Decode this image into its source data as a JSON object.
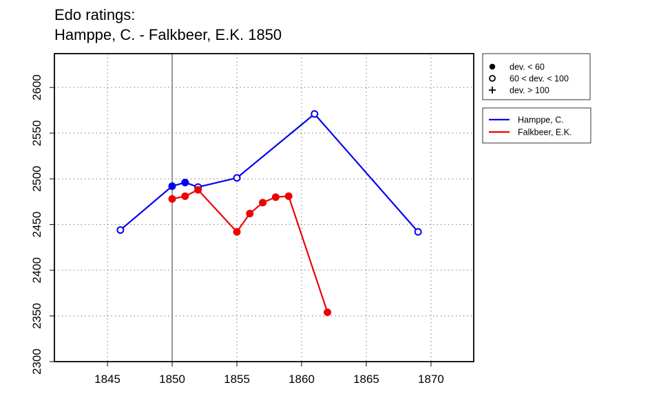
{
  "chart_data": {
    "type": "line",
    "title_lines": [
      "Edo ratings:",
      "Hamppe, C. - Falkbeer, E.K. 1850"
    ],
    "xlabel": "",
    "ylabel": "",
    "xlim": [
      1840.9,
      1873.3
    ],
    "ylim": [
      2300,
      2637
    ],
    "x_ticks": [
      1845,
      1850,
      1855,
      1860,
      1865,
      1870
    ],
    "y_ticks": [
      2300,
      2350,
      2400,
      2450,
      2500,
      2550,
      2600
    ],
    "grid": "dotted, at major ticks",
    "marker_line_x": 1850,
    "series": [
      {
        "name": "Hamppe, C.",
        "color": "#0000ee",
        "points": [
          {
            "x": 1846,
            "y": 2444,
            "marker": "open"
          },
          {
            "x": 1850,
            "y": 2492,
            "marker": "filled"
          },
          {
            "x": 1851,
            "y": 2496,
            "marker": "filled"
          },
          {
            "x": 1852,
            "y": 2491,
            "marker": "open"
          },
          {
            "x": 1855,
            "y": 2501,
            "marker": "open"
          },
          {
            "x": 1861,
            "y": 2571,
            "marker": "open"
          },
          {
            "x": 1869,
            "y": 2442,
            "marker": "open"
          }
        ]
      },
      {
        "name": "Falkbeer, E.K.",
        "color": "#ee0000",
        "points": [
          {
            "x": 1850,
            "y": 2478,
            "marker": "filled"
          },
          {
            "x": 1851,
            "y": 2481,
            "marker": "filled"
          },
          {
            "x": 1852,
            "y": 2488,
            "marker": "filled"
          },
          {
            "x": 1855,
            "y": 2442,
            "marker": "filled"
          },
          {
            "x": 1856,
            "y": 2462,
            "marker": "filled"
          },
          {
            "x": 1857,
            "y": 2474,
            "marker": "filled"
          },
          {
            "x": 1858,
            "y": 2480,
            "marker": "filled"
          },
          {
            "x": 1859,
            "y": 2481,
            "marker": "filled"
          },
          {
            "x": 1862,
            "y": 2354,
            "marker": "filled"
          }
        ]
      }
    ],
    "marker_legend": [
      {
        "symbol": "filled-circle",
        "label": "dev. < 60"
      },
      {
        "symbol": "open-circle",
        "label": "60 < dev. < 100"
      },
      {
        "symbol": "plus",
        "label": "dev. > 100"
      }
    ],
    "legend_position": "right of plot, top"
  }
}
